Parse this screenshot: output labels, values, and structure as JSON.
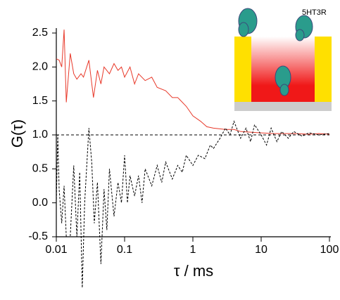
{
  "chart_data": {
    "type": "line",
    "ylabel": "G(τ)",
    "xlabel": "τ / ms",
    "inset_label": "5HT3R",
    "xlog": true,
    "xlim": [
      0.01,
      100
    ],
    "xticks": [
      0.01,
      0.1,
      1,
      10,
      100
    ],
    "ylim": [
      -0.5,
      2.5
    ],
    "yticks": [
      -0.5,
      {
        "value": 0,
        "label": "0.0"
      },
      0.5,
      {
        "value": 1,
        "label": "1.0"
      },
      1.5,
      {
        "value": 2,
        "label": "2.0"
      },
      2.5
    ],
    "reference_line": 1,
    "series": [
      {
        "color": "#e8392a",
        "dashed": false,
        "x": [
          0.01,
          0.011,
          0.012,
          0.013,
          0.014,
          0.016,
          0.018,
          0.02,
          0.023,
          0.025,
          0.03,
          0.035,
          0.04,
          0.045,
          0.05,
          0.06,
          0.07,
          0.08,
          0.09,
          0.1,
          0.12,
          0.14,
          0.16,
          0.2,
          0.25,
          0.3,
          0.4,
          0.5,
          0.6,
          0.8,
          1,
          1.3,
          1.6,
          2,
          3,
          4,
          5,
          7,
          10,
          15,
          20,
          30,
          50,
          70,
          100
        ],
        "values": [
          2.12,
          2.1,
          2.0,
          2.55,
          1.48,
          2.2,
          1.9,
          1.82,
          1.9,
          1.85,
          2.1,
          1.55,
          1.95,
          1.75,
          2.0,
          1.9,
          2.05,
          1.95,
          2.0,
          1.85,
          2.0,
          1.75,
          1.9,
          1.8,
          1.85,
          1.7,
          1.65,
          1.55,
          1.55,
          1.42,
          1.28,
          1.2,
          1.12,
          1.1,
          1.08,
          1.08,
          1.05,
          1.04,
          1.03,
          1.02,
          1.02,
          1.02,
          1.01,
          1.02,
          1.01
        ]
      },
      {
        "color": "#000000",
        "dashed": true,
        "x": [
          0.01,
          0.0105,
          0.011,
          0.012,
          0.013,
          0.014,
          0.016,
          0.018,
          0.02,
          0.022,
          0.024,
          0.026,
          0.03,
          0.033,
          0.036,
          0.04,
          0.045,
          0.05,
          0.055,
          0.06,
          0.07,
          0.08,
          0.09,
          0.1,
          0.11,
          0.12,
          0.14,
          0.16,
          0.18,
          0.2,
          0.25,
          0.3,
          0.35,
          0.4,
          0.5,
          0.6,
          0.7,
          0.8,
          1,
          1.2,
          1.5,
          1.8,
          2,
          2.5,
          3,
          3.5,
          4,
          5,
          6,
          7,
          8,
          10,
          12,
          14,
          17,
          20,
          25,
          30,
          40,
          50,
          70,
          100
        ],
        "values": [
          0.0,
          1.0,
          0.2,
          -0.3,
          0.25,
          -0.5,
          -0.5,
          0.55,
          -0.5,
          0.45,
          -1.25,
          0.0,
          1.1,
          0.6,
          -0.3,
          0.3,
          -0.9,
          0.2,
          -0.4,
          0.5,
          -0.2,
          0.3,
          0.0,
          0.7,
          0.0,
          0.4,
          0.1,
          0.4,
          0.0,
          0.5,
          0.25,
          0.55,
          0.3,
          0.6,
          0.35,
          0.55,
          0.45,
          0.7,
          0.55,
          0.7,
          0.65,
          0.85,
          0.8,
          0.95,
          1.1,
          1.0,
          1.2,
          0.95,
          1.1,
          0.9,
          1.15,
          1.0,
          0.85,
          1.1,
          0.9,
          1.05,
          0.95,
          1.05,
          0.98,
          1.03,
          1.0,
          1.02
        ]
      }
    ]
  }
}
